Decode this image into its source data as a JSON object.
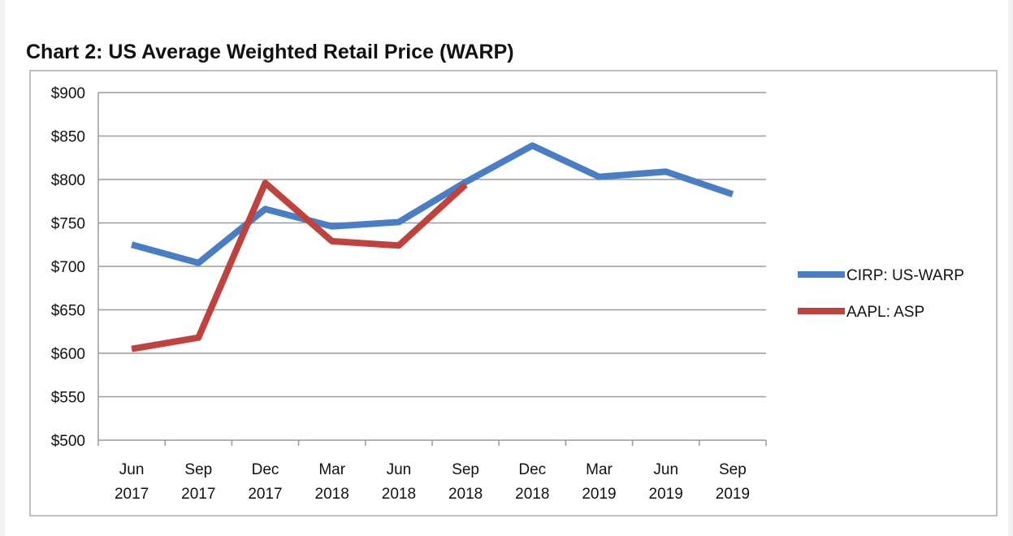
{
  "chart_data": {
    "type": "line",
    "title": "Chart 2: US Average Weighted Retail Price (WARP)",
    "xlabel": "",
    "ylabel": "",
    "ylim": [
      500,
      900
    ],
    "y_ticks": [
      "$500",
      "$550",
      "$600",
      "$650",
      "$700",
      "$750",
      "$800",
      "$850",
      "$900"
    ],
    "y_tick_values": [
      500,
      550,
      600,
      650,
      700,
      750,
      800,
      850,
      900
    ],
    "categories": [
      [
        "Jun",
        "2017"
      ],
      [
        "Sep",
        "2017"
      ],
      [
        "Dec",
        "2017"
      ],
      [
        "Mar",
        "2018"
      ],
      [
        "Jun",
        "2018"
      ],
      [
        "Sep",
        "2018"
      ],
      [
        "Dec",
        "2018"
      ],
      [
        "Mar",
        "2019"
      ],
      [
        "Jun",
        "2019"
      ],
      [
        "Sep",
        "2019"
      ]
    ],
    "grid": "horizontal",
    "legend_position": "right",
    "series": [
      {
        "name": "CIRP: US-WARP",
        "color": "#4a7ec4",
        "values": [
          725,
          704,
          766,
          746,
          751,
          797,
          839,
          803,
          809,
          783
        ]
      },
      {
        "name": "AAPL: ASP",
        "color": "#c0423f",
        "values": [
          605,
          618,
          796,
          729,
          724,
          794,
          null,
          null,
          null,
          null
        ]
      }
    ]
  }
}
